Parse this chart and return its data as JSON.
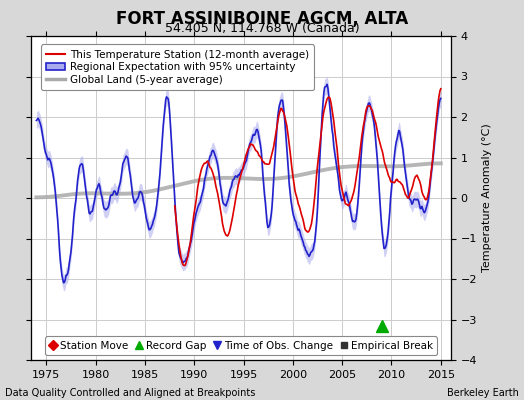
{
  "title": "FORT ASSINIBOINE AGCM, ALTA",
  "subtitle": "54.405 N, 114.768 W (Canada)",
  "xlabel_left": "Data Quality Controlled and Aligned at Breakpoints",
  "xlabel_right": "Berkeley Earth",
  "ylabel": "Temperature Anomaly (°C)",
  "xlim": [
    1973.5,
    2016.0
  ],
  "ylim": [
    -4,
    4
  ],
  "yticks": [
    -4,
    -3,
    -2,
    -1,
    0,
    1,
    2,
    3,
    4
  ],
  "xticks": [
    1975,
    1980,
    1985,
    1990,
    1995,
    2000,
    2005,
    2010,
    2015
  ],
  "background_color": "#d8d8d8",
  "plot_background": "#ffffff",
  "grid_color": "#cccccc",
  "station_color": "#dd0000",
  "regional_color": "#2222cc",
  "regional_band_color": "#aaaaee",
  "global_color": "#aaaaaa",
  "record_gap_color": "#00aa00",
  "record_gap_x": 2009.0,
  "record_gap_y": -3.15,
  "legend_items": [
    {
      "label": "This Temperature Station (12-month average)",
      "color": "#dd0000",
      "lw": 1.5
    },
    {
      "label": "Regional Expectation with 95% uncertainty",
      "color": "#2222cc",
      "lw": 1.5
    },
    {
      "label": "Global Land (5-year average)",
      "color": "#aaaaaa",
      "lw": 2.5
    }
  ],
  "marker_legend": [
    {
      "label": "Station Move",
      "color": "#dd0000",
      "marker": "D",
      "ms": 5
    },
    {
      "label": "Record Gap",
      "color": "#00aa00",
      "marker": "^",
      "ms": 6
    },
    {
      "label": "Time of Obs. Change",
      "color": "#2222cc",
      "marker": "v",
      "ms": 6
    },
    {
      "label": "Empirical Break",
      "color": "#333333",
      "marker": "s",
      "ms": 4
    }
  ],
  "title_fontsize": 12,
  "subtitle_fontsize": 9,
  "tick_fontsize": 8,
  "ylabel_fontsize": 8,
  "legend_fontsize": 7.5,
  "footer_fontsize": 7
}
